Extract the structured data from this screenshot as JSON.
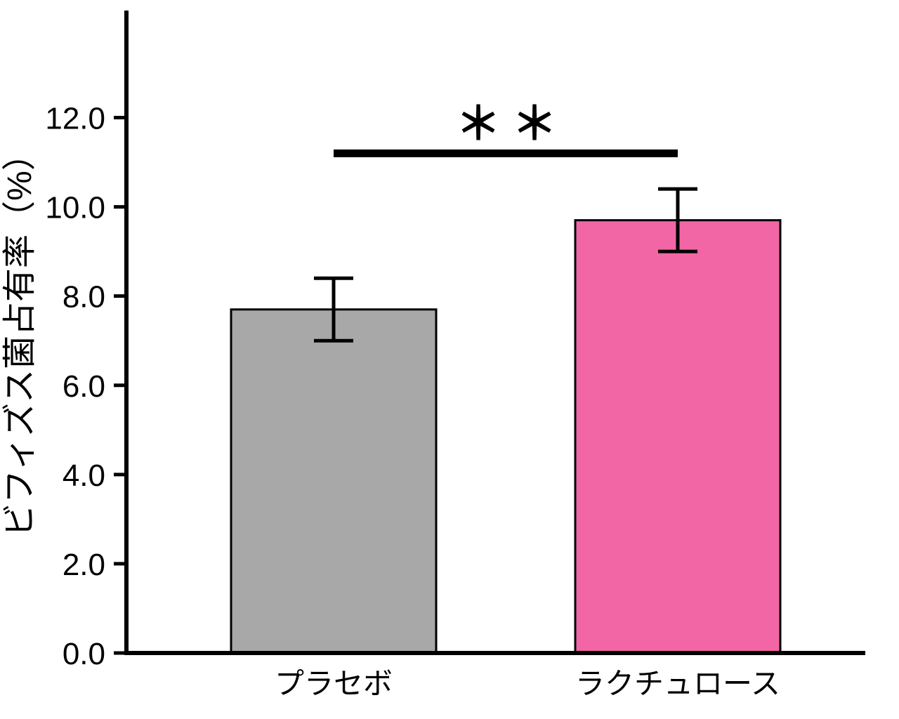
{
  "chart_data": {
    "type": "bar",
    "title": "",
    "xlabel": "",
    "ylabel": "ビフィズス菌占有率（%）",
    "categories": [
      "プラセボ",
      "ラクチュロース"
    ],
    "values": [
      7.7,
      9.7
    ],
    "errors": [
      0.7,
      0.7
    ],
    "bar_colors": [
      "#a8a8a8",
      "#f266a6"
    ],
    "bar_edge_color": "#000000",
    "axis_color": "#000000",
    "yticks": [
      0.0,
      2.0,
      4.0,
      6.0,
      8.0,
      10.0,
      12.0
    ],
    "ytick_labels": [
      "0.0",
      "2.0",
      "4.0",
      "6.0",
      "8.0",
      "10.0",
      "12.0"
    ],
    "ylim": [
      0,
      14.4
    ],
    "grid": false,
    "legend": null,
    "significance": {
      "label": "＊＊",
      "between": [
        "プラセボ",
        "ラクチュロース"
      ],
      "line_y": 11.2
    }
  }
}
